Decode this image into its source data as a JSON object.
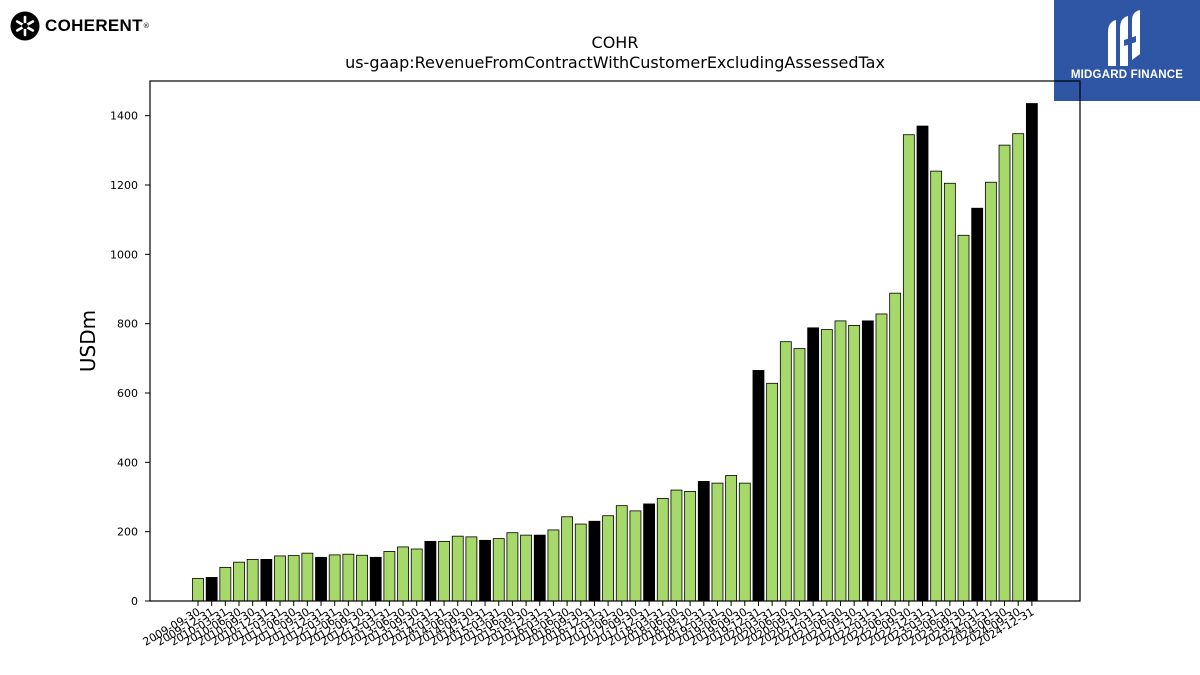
{
  "brand": {
    "left_logo_text": "COHERENT",
    "right_logo_text": "MIDGARD FINANCE"
  },
  "colors": {
    "annual_bar": "#000000",
    "quarter_bar": "#a6d96a",
    "bar_edge": "#000000",
    "brand_blue": "#2f56a5"
  },
  "chart_data": {
    "type": "bar",
    "title": "COHR",
    "subtitle": "us-gaap:RevenueFromContractWithCustomerExcludingAssessedTax",
    "ylabel": "USDm",
    "xlabel": "",
    "ylim": [
      0,
      1500
    ],
    "yticks": [
      0,
      200,
      400,
      600,
      800,
      1000,
      1200,
      1400
    ],
    "grid": false,
    "categories": [
      "2009-09-30",
      "2009-12-31",
      "2010-03-31",
      "2010-06-30",
      "2010-09-30",
      "2010-12-31",
      "2011-03-31",
      "2011-06-30",
      "2011-09-30",
      "2011-12-31",
      "2012-03-31",
      "2012-06-30",
      "2012-09-30",
      "2012-12-31",
      "2013-03-31",
      "2013-06-30",
      "2013-09-30",
      "2013-12-31",
      "2014-03-31",
      "2014-06-30",
      "2014-09-30",
      "2014-12-31",
      "2015-03-31",
      "2015-06-30",
      "2015-09-30",
      "2015-12-31",
      "2016-03-31",
      "2016-06-30",
      "2016-09-30",
      "2016-12-31",
      "2017-03-31",
      "2017-06-30",
      "2017-09-30",
      "2017-12-31",
      "2018-03-31",
      "2018-06-30",
      "2018-09-30",
      "2018-12-31",
      "2019-03-31",
      "2019-06-30",
      "2019-09-30",
      "2019-12-31",
      "2020-03-31",
      "2020-06-30",
      "2020-09-30",
      "2020-12-31",
      "2021-03-31",
      "2021-06-30",
      "2021-09-30",
      "2021-12-31",
      "2022-03-31",
      "2022-06-30",
      "2022-09-30",
      "2022-12-31",
      "2023-03-31",
      "2023-06-30",
      "2023-09-30",
      "2023-12-31",
      "2024-03-31",
      "2024-06-30",
      "2024-09-30",
      "2024-12-31"
    ],
    "values": [
      65,
      68,
      97,
      112,
      120,
      120,
      130,
      131,
      138,
      126,
      133,
      135,
      132,
      126,
      143,
      156,
      150,
      172,
      172,
      187,
      185,
      175,
      180,
      197,
      190,
      190,
      205,
      243,
      222,
      230,
      246,
      275,
      260,
      280,
      296,
      320,
      316,
      345,
      340,
      362,
      340,
      665,
      628,
      748,
      728,
      788,
      783,
      808,
      795,
      808,
      828,
      888,
      1345,
      1370,
      1240,
      1205,
      1055,
      1133,
      1208,
      1315,
      1348,
      1435
    ],
    "annual_flags": [
      0,
      1,
      0,
      0,
      0,
      1,
      0,
      0,
      0,
      1,
      0,
      0,
      0,
      1,
      0,
      0,
      0,
      1,
      0,
      0,
      0,
      1,
      0,
      0,
      0,
      1,
      0,
      0,
      0,
      1,
      0,
      0,
      0,
      1,
      0,
      0,
      0,
      1,
      0,
      0,
      0,
      1,
      0,
      0,
      0,
      1,
      0,
      0,
      0,
      1,
      0,
      0,
      0,
      1,
      0,
      0,
      0,
      1,
      0,
      0,
      0,
      1
    ]
  }
}
